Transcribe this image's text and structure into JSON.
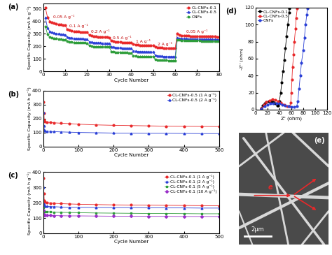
{
  "chart_data": [
    {
      "type": "line",
      "title": "(a)",
      "x_label": "Cycle Number",
      "y_label": "Specific Capacity (mA h g⁻¹)",
      "x": [
        1,
        2,
        3,
        4,
        5,
        6,
        7,
        8,
        9,
        10,
        11,
        12,
        13,
        14,
        15,
        16,
        17,
        18,
        19,
        20,
        21,
        22,
        23,
        24,
        25,
        26,
        27,
        28,
        29,
        30,
        31,
        32,
        33,
        34,
        35,
        36,
        37,
        38,
        39,
        40,
        41,
        42,
        43,
        44,
        45,
        46,
        47,
        48,
        49,
        50,
        51,
        52,
        53,
        54,
        55,
        56,
        57,
        58,
        59,
        60,
        61,
        62,
        63,
        64,
        65,
        66,
        67,
        68,
        69,
        70,
        71,
        72,
        73,
        74,
        75,
        76,
        77,
        78,
        79,
        80
      ],
      "series": [
        {
          "name": "CL-CNFs-0.1",
          "color": "#e8282a",
          "marker": "o",
          "line_style": "solid",
          "values": [
            510,
            430,
            400,
            390,
            385,
            380,
            376,
            373,
            370,
            368,
            335,
            328,
            324,
            321,
            319,
            317,
            315,
            314,
            313,
            312,
            290,
            284,
            280,
            278,
            276,
            275,
            274,
            273,
            272,
            271,
            245,
            240,
            237,
            235,
            233,
            232,
            231,
            230,
            229,
            228,
            218,
            214,
            212,
            210,
            209,
            208,
            207,
            206,
            206,
            205,
            195,
            192,
            190,
            189,
            188,
            187,
            186,
            185,
            185,
            184,
            300,
            292,
            288,
            286,
            285,
            284,
            283,
            282,
            282,
            281,
            281,
            280,
            280,
            279,
            279,
            278,
            278,
            278,
            277,
            277
          ]
        },
        {
          "name": "CL-CNFs-0.5",
          "color": "#2a3fd6",
          "marker": "^",
          "line_style": "solid",
          "values": [
            430,
            345,
            320,
            312,
            307,
            303,
            300,
            298,
            296,
            294,
            275,
            270,
            267,
            265,
            264,
            263,
            262,
            261,
            260,
            259,
            238,
            234,
            232,
            230,
            229,
            228,
            227,
            226,
            226,
            225,
            198,
            194,
            192,
            190,
            189,
            188,
            187,
            186,
            186,
            185,
            165,
            162,
            160,
            159,
            158,
            157,
            157,
            156,
            156,
            155,
            128,
            125,
            123,
            122,
            121,
            120,
            120,
            119,
            119,
            118,
            270,
            265,
            263,
            262,
            261,
            260,
            260,
            259,
            259,
            258,
            258,
            258,
            257,
            257,
            257,
            256,
            256,
            256,
            255,
            255
          ]
        },
        {
          "name": "CNFs",
          "color": "#2e9d3a",
          "marker": "p",
          "line_style": "solid",
          "values": [
            360,
            295,
            275,
            268,
            264,
            261,
            259,
            257,
            255,
            254,
            240,
            236,
            234,
            232,
            231,
            230,
            229,
            228,
            228,
            227,
            205,
            201,
            199,
            198,
            197,
            196,
            195,
            195,
            194,
            194,
            160,
            156,
            154,
            153,
            152,
            151,
            150,
            150,
            149,
            149,
            125,
            122,
            120,
            119,
            118,
            118,
            117,
            117,
            116,
            116,
            95,
            92,
            90,
            89,
            88,
            88,
            87,
            87,
            86,
            86,
            255,
            250,
            248,
            247,
            246,
            246,
            245,
            245,
            244,
            244,
            244,
            243,
            243,
            243,
            242,
            242,
            242,
            242,
            241,
            241
          ]
        }
      ],
      "xlim": [
        0,
        80
      ],
      "xticks": [
        0,
        10,
        20,
        30,
        40,
        50,
        60,
        70,
        80
      ],
      "ylim": [
        0,
        540
      ],
      "yticks": [
        0,
        100,
        200,
        300,
        400,
        500
      ],
      "legend": "upper right",
      "annotations": [
        {
          "text": "0.05 A g⁻¹",
          "x": 9.5,
          "y": 420
        },
        {
          "text": "0.1 A g⁻¹",
          "x": 16,
          "y": 345
        },
        {
          "text": "0.2 A g⁻¹",
          "x": 26,
          "y": 300
        },
        {
          "text": "0.5 A g⁻¹",
          "x": 36,
          "y": 255
        },
        {
          "text": "1 A g⁻¹",
          "x": 45.5,
          "y": 225
        },
        {
          "text": "2 A g⁻¹",
          "x": 55.5,
          "y": 200
        },
        {
          "text": "0.05 A g⁻¹",
          "x": 70,
          "y": 300
        }
      ]
    },
    {
      "type": "line",
      "title": "(b)",
      "x_label": "Cycle Number",
      "y_label": "Specific Capacity (mA h g⁻¹)",
      "x": [
        1,
        2,
        3,
        5,
        10,
        20,
        30,
        50,
        75,
        100,
        150,
        200,
        250,
        300,
        350,
        400,
        450,
        500
      ],
      "series": [
        {
          "name": "CL-CNFs-0.5 (1 A g⁻¹)",
          "color": "#e8282a",
          "marker": "o",
          "line_style": "solid",
          "values": [
            320,
            240,
            190,
            180,
            175,
            172,
            170,
            167,
            164,
            160,
            155,
            152,
            150,
            148,
            146,
            145,
            144,
            143
          ]
        },
        {
          "name": "CL-CNFs-0.5 (2 A g⁻¹)",
          "color": "#2a3fd6",
          "marker": "^",
          "line_style": "solid",
          "values": [
            245,
            150,
            120,
            112,
            110,
            108,
            107,
            105,
            103,
            101,
            99,
            97,
            96,
            95,
            95,
            94,
            93,
            93
          ]
        }
      ],
      "xlim": [
        0,
        500
      ],
      "xticks": [
        0,
        100,
        200,
        300,
        400,
        500
      ],
      "ylim": [
        0,
        400
      ],
      "yticks": [
        0,
        100,
        200,
        300,
        400
      ],
      "legend": "upper right"
    },
    {
      "type": "line",
      "title": "(c)",
      "x_label": "Cycle Number",
      "y_label": "Specific Capacity (mA h g⁻¹)",
      "x": [
        1,
        2,
        3,
        5,
        10,
        20,
        30,
        50,
        75,
        100,
        150,
        200,
        250,
        300,
        350,
        400,
        450,
        500
      ],
      "series": [
        {
          "name": "CL-CNFs-0.1 (1 A g⁻¹)",
          "color": "#e8282a",
          "marker": "o",
          "line_style": "solid",
          "values": [
            360,
            260,
            215,
            205,
            200,
            198,
            196,
            194,
            192,
            190,
            188,
            186,
            185,
            184,
            183,
            182,
            181,
            180
          ]
        },
        {
          "name": "CL-CNFs-0.1 (2 A g⁻¹)",
          "color": "#2a3fd6",
          "marker": "^",
          "line_style": "solid",
          "values": [
            300,
            190,
            180,
            178,
            176,
            175,
            174,
            172,
            171,
            170,
            169,
            168,
            168,
            167,
            166,
            166,
            165,
            165
          ]
        },
        {
          "name": "CL-CNFs-0.1 (5 A g⁻¹)",
          "color": "#2e9d3a",
          "marker": "s",
          "line_style": "solid",
          "values": [
            170,
            145,
            140,
            140,
            142,
            140,
            138,
            137,
            136,
            135,
            133,
            132,
            131,
            130,
            130,
            129,
            128,
            128
          ]
        },
        {
          "name": "CL-CNFs-0.1 (10 A g⁻¹)",
          "color": "#9b30c8",
          "marker": "D",
          "line_style": "solid",
          "values": [
            150,
            125,
            120,
            118,
            118,
            117,
            116,
            115,
            114,
            114,
            113,
            112,
            112,
            111,
            111,
            110,
            110,
            110
          ]
        }
      ],
      "xlim": [
        0,
        500
      ],
      "xticks": [
        0,
        100,
        200,
        300,
        400,
        500
      ],
      "ylim": [
        0,
        400
      ],
      "yticks": [
        0,
        100,
        200,
        300,
        400
      ],
      "legend": "upper right"
    },
    {
      "type": "line",
      "title": "(d)",
      "x_label": "Z' (ohm)",
      "y_label": "-Z'' (ohm)",
      "series": [
        {
          "name": "CL-CNFs-0.1",
          "color": "#000000",
          "marker": "o",
          "line_style": "solid",
          "x": [
            10,
            12,
            15,
            18,
            22,
            26,
            30,
            33,
            36,
            38,
            40,
            42,
            44,
            46,
            48,
            50,
            52,
            54,
            56,
            57
          ],
          "values": [
            2,
            5,
            7.5,
            9,
            10,
            10,
            9,
            7,
            5,
            5,
            10,
            20,
            32,
            45,
            58,
            72,
            86,
            100,
            114,
            119
          ]
        },
        {
          "name": "CL-CNFs-0.5",
          "color": "#e8282a",
          "marker": "o",
          "line_style": "solid",
          "x": [
            10,
            14,
            18,
            23,
            28,
            33,
            38,
            43,
            48,
            53,
            57,
            59,
            60,
            61,
            62,
            64,
            65,
            67,
            68,
            70
          ],
          "values": [
            2,
            6,
            9,
            11,
            12,
            11.5,
            10,
            8,
            6,
            4,
            4,
            8,
            20,
            35,
            50,
            65,
            80,
            95,
            108,
            119
          ]
        },
        {
          "name": "CNFs",
          "color": "#2a3fd6",
          "marker": "o",
          "line_style": "solid",
          "x": [
            10,
            15,
            20,
            25,
            30,
            35,
            40,
            45,
            50,
            55,
            60,
            65,
            69,
            71,
            73,
            75,
            77,
            80,
            82,
            84,
            86,
            87
          ],
          "values": [
            1,
            4,
            6,
            7,
            7.5,
            7.5,
            7,
            6,
            5,
            4,
            3,
            3,
            4,
            10,
            25,
            40,
            55,
            70,
            85,
            100,
            112,
            119
          ]
        }
      ],
      "xlim": [
        0,
        120
      ],
      "xticks": [
        0,
        20,
        40,
        60,
        80,
        100,
        120
      ],
      "ylim": [
        0,
        120
      ],
      "yticks": [
        0,
        20,
        40,
        60,
        80,
        100,
        120
      ],
      "legend": "upper left"
    }
  ],
  "image_panel": {
    "title": "(e)",
    "arrow_label": "e",
    "scale_bar": "2μm"
  }
}
